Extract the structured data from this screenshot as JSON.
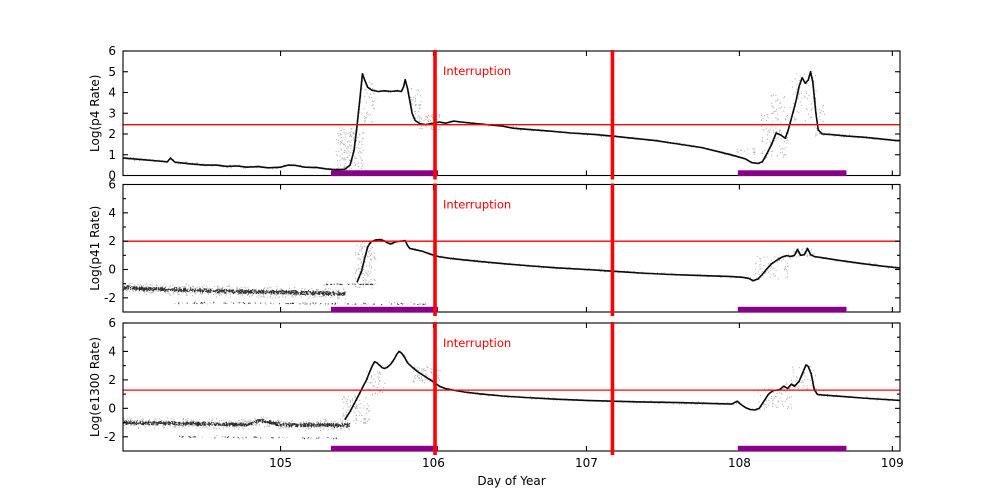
{
  "figure": {
    "background": "#ffffff"
  },
  "chart_data": {
    "type": "scatter",
    "title": "",
    "xlabel": "Day of Year",
    "xlim": [
      103.97,
      109.05
    ],
    "xticks": [
      105,
      106,
      107,
      108,
      109
    ],
    "grid": false,
    "legend": "none",
    "colors": {
      "trace": "#000000",
      "threshold": "#ff0000",
      "interruption": "#ff0000",
      "bar": "#870087"
    },
    "interruption": {
      "label": "Interruption",
      "days": [
        106.01,
        107.17
      ]
    },
    "coverage_bars": [
      [
        105.33,
        106.03
      ],
      [
        107.99,
        108.7
      ]
    ],
    "panels": [
      {
        "ylabel": "Log(p4 Rate)",
        "ylim": [
          0,
          6
        ],
        "yticks_major": [
          0,
          1,
          2,
          3,
          4,
          5,
          6
        ],
        "yticks_minor": [],
        "threshold": 2.45,
        "trace": [
          [
            103.97,
            0.85
          ],
          [
            104.1,
            0.76
          ],
          [
            104.2,
            0.7
          ],
          [
            104.26,
            0.66
          ],
          [
            104.28,
            0.84
          ],
          [
            104.31,
            0.64
          ],
          [
            104.4,
            0.57
          ],
          [
            104.5,
            0.5
          ],
          [
            104.58,
            0.5
          ],
          [
            104.65,
            0.44
          ],
          [
            104.72,
            0.46
          ],
          [
            104.78,
            0.4
          ],
          [
            104.85,
            0.43
          ],
          [
            104.92,
            0.37
          ],
          [
            105.0,
            0.4
          ],
          [
            105.05,
            0.5
          ],
          [
            105.1,
            0.48
          ],
          [
            105.16,
            0.4
          ],
          [
            105.24,
            0.38
          ],
          [
            105.3,
            0.32
          ],
          [
            105.36,
            0.28
          ],
          [
            105.42,
            0.3
          ],
          [
            105.455,
            0.5
          ],
          [
            105.48,
            1.2
          ],
          [
            105.5,
            2.4
          ],
          [
            105.52,
            3.8
          ],
          [
            105.535,
            4.9
          ],
          [
            105.55,
            4.6
          ],
          [
            105.57,
            4.25
          ],
          [
            105.6,
            4.1
          ],
          [
            105.64,
            4.05
          ],
          [
            105.68,
            4.08
          ],
          [
            105.72,
            4.05
          ],
          [
            105.76,
            4.08
          ],
          [
            105.79,
            4.05
          ],
          [
            105.805,
            4.3
          ],
          [
            105.815,
            4.62
          ],
          [
            105.83,
            4.2
          ],
          [
            105.845,
            3.6
          ],
          [
            105.86,
            3.0
          ],
          [
            105.88,
            2.65
          ],
          [
            105.91,
            2.5
          ],
          [
            105.95,
            2.45
          ],
          [
            106.0,
            2.52
          ],
          [
            106.04,
            2.58
          ],
          [
            106.08,
            2.52
          ],
          [
            106.13,
            2.62
          ],
          [
            106.18,
            2.58
          ],
          [
            106.25,
            2.52
          ],
          [
            106.35,
            2.45
          ],
          [
            106.45,
            2.38
          ],
          [
            106.52,
            2.28
          ],
          [
            106.62,
            2.22
          ],
          [
            106.75,
            2.15
          ],
          [
            106.9,
            2.05
          ],
          [
            107.05,
            1.98
          ],
          [
            107.17,
            1.9
          ],
          [
            107.3,
            1.8
          ],
          [
            107.45,
            1.68
          ],
          [
            107.6,
            1.52
          ],
          [
            107.75,
            1.35
          ],
          [
            107.88,
            1.12
          ],
          [
            107.97,
            0.95
          ],
          [
            108.0,
            0.88
          ],
          [
            108.04,
            0.8
          ],
          [
            108.08,
            0.62
          ],
          [
            108.12,
            0.58
          ],
          [
            108.15,
            0.66
          ],
          [
            108.18,
            1.05
          ],
          [
            108.21,
            1.5
          ],
          [
            108.24,
            2.05
          ],
          [
            108.27,
            1.95
          ],
          [
            108.3,
            1.8
          ],
          [
            108.32,
            2.2
          ],
          [
            108.345,
            2.9
          ],
          [
            108.37,
            3.6
          ],
          [
            108.39,
            4.3
          ],
          [
            108.41,
            4.72
          ],
          [
            108.43,
            4.45
          ],
          [
            108.45,
            4.6
          ],
          [
            108.465,
            5.0
          ],
          [
            108.48,
            4.5
          ],
          [
            108.5,
            3.0
          ],
          [
            108.515,
            2.2
          ],
          [
            108.54,
            2.0
          ],
          [
            108.6,
            1.97
          ],
          [
            108.7,
            1.9
          ],
          [
            108.8,
            1.85
          ],
          [
            108.9,
            1.78
          ],
          [
            109.0,
            1.7
          ],
          [
            109.05,
            1.67
          ]
        ],
        "noise_bands": [],
        "scatter": [
          {
            "x0": 105.36,
            "x1": 105.54,
            "y0": 0.15,
            "y1": 2.3,
            "n": 170
          },
          {
            "x0": 105.54,
            "x1": 105.62,
            "y0": 2.5,
            "y1": 4.6,
            "n": 40
          },
          {
            "x0": 105.84,
            "x1": 105.92,
            "y0": 2.7,
            "y1": 4.2,
            "n": 40
          },
          {
            "x0": 105.9,
            "x1": 106.04,
            "y0": 2.2,
            "y1": 2.95,
            "n": 60
          },
          {
            "x0": 107.96,
            "x1": 108.1,
            "y0": 1.0,
            "y1": 1.45,
            "n": 15
          },
          {
            "x0": 108.14,
            "x1": 108.32,
            "y0": 0.8,
            "y1": 3.0,
            "n": 95
          },
          {
            "x0": 108.2,
            "x1": 108.3,
            "y0": 2.8,
            "y1": 3.9,
            "n": 25
          },
          {
            "x0": 108.32,
            "x1": 108.5,
            "y0": 2.6,
            "y1": 4.9,
            "n": 60
          },
          {
            "x0": 108.48,
            "x1": 108.56,
            "y0": 1.9,
            "y1": 3.4,
            "n": 25
          }
        ]
      },
      {
        "ylabel": "Log(p41 Rate)",
        "ylim": [
          -3,
          6
        ],
        "yticks_major": [
          -2,
          0,
          2,
          4,
          6
        ],
        "yticks_minor": [
          -1,
          1,
          3,
          5
        ],
        "threshold": 2.0,
        "trace": [
          [
            105.5,
            -0.9
          ],
          [
            105.53,
            -0.1
          ],
          [
            105.55,
            0.8
          ],
          [
            105.57,
            1.6
          ],
          [
            105.59,
            1.95
          ],
          [
            105.62,
            2.08
          ],
          [
            105.65,
            2.12
          ],
          [
            105.68,
            2.02
          ],
          [
            105.7,
            1.88
          ],
          [
            105.72,
            1.8
          ],
          [
            105.75,
            1.95
          ],
          [
            105.78,
            2.0
          ],
          [
            105.8,
            2.02
          ],
          [
            105.815,
            2.05
          ],
          [
            105.83,
            1.7
          ],
          [
            105.845,
            1.48
          ],
          [
            105.88,
            1.4
          ],
          [
            105.93,
            1.28
          ],
          [
            105.98,
            1.08
          ],
          [
            106.03,
            0.92
          ],
          [
            106.1,
            0.8
          ],
          [
            106.2,
            0.68
          ],
          [
            106.3,
            0.57
          ],
          [
            106.45,
            0.42
          ],
          [
            106.6,
            0.28
          ],
          [
            106.8,
            0.12
          ],
          [
            107.0,
            0.0
          ],
          [
            107.17,
            -0.12
          ],
          [
            107.35,
            -0.25
          ],
          [
            107.55,
            -0.35
          ],
          [
            107.75,
            -0.43
          ],
          [
            107.95,
            -0.5
          ],
          [
            108.02,
            -0.55
          ],
          [
            108.06,
            -0.62
          ],
          [
            108.09,
            -0.78
          ],
          [
            108.12,
            -0.68
          ],
          [
            108.15,
            -0.35
          ],
          [
            108.18,
            0.05
          ],
          [
            108.21,
            0.4
          ],
          [
            108.25,
            0.7
          ],
          [
            108.28,
            0.88
          ],
          [
            108.31,
            0.98
          ],
          [
            108.335,
            0.92
          ],
          [
            108.36,
            1.0
          ],
          [
            108.38,
            1.42
          ],
          [
            108.4,
            1.0
          ],
          [
            108.425,
            1.05
          ],
          [
            108.445,
            1.5
          ],
          [
            108.465,
            1.05
          ],
          [
            108.49,
            0.92
          ],
          [
            108.55,
            0.82
          ],
          [
            108.65,
            0.65
          ],
          [
            108.8,
            0.42
          ],
          [
            108.95,
            0.22
          ],
          [
            109.05,
            0.1
          ]
        ],
        "noise_bands": [
          {
            "centers": [
              [
                103.97,
                -1.3
              ],
              [
                104.5,
                -1.5
              ],
              [
                105.0,
                -1.6
              ],
              [
                105.42,
                -1.72
              ]
            ],
            "spread": 0.35,
            "n": 1500
          },
          {
            "centers": [
              [
                104.3,
                -2.35
              ],
              [
                105.95,
                -2.45
              ]
            ],
            "spread": 0.12,
            "n": 110
          },
          {
            "centers": [
              [
                105.28,
                -1.05
              ],
              [
                105.6,
                -1.05
              ]
            ],
            "spread": 0.05,
            "n": 45
          }
        ],
        "scatter": [
          {
            "x0": 105.48,
            "x1": 105.62,
            "y0": -1.3,
            "y1": 1.9,
            "n": 110
          },
          {
            "x0": 108.1,
            "x1": 108.32,
            "y0": -0.7,
            "y1": 1.0,
            "n": 60
          },
          {
            "x0": 108.32,
            "x1": 108.5,
            "y0": 0.8,
            "y1": 1.5,
            "n": 30
          }
        ]
      },
      {
        "ylabel": "Log(e1300 Rate)",
        "ylim": [
          -3,
          6
        ],
        "yticks_major": [
          -2,
          0,
          2,
          4,
          6
        ],
        "yticks_minor": [
          -1,
          1,
          3,
          5
        ],
        "threshold": 1.28,
        "trace": [
          [
            105.42,
            -0.8
          ],
          [
            105.45,
            -0.3
          ],
          [
            105.48,
            0.3
          ],
          [
            105.51,
            0.9
          ],
          [
            105.54,
            1.55
          ],
          [
            105.56,
            1.95
          ],
          [
            105.58,
            2.5
          ],
          [
            105.6,
            3.0
          ],
          [
            105.615,
            3.28
          ],
          [
            105.63,
            3.2
          ],
          [
            105.65,
            3.0
          ],
          [
            105.665,
            2.85
          ],
          [
            105.68,
            2.8
          ],
          [
            105.7,
            2.9
          ],
          [
            105.72,
            3.1
          ],
          [
            105.745,
            3.5
          ],
          [
            105.76,
            3.8
          ],
          [
            105.775,
            4.0
          ],
          [
            105.79,
            3.9
          ],
          [
            105.81,
            3.6
          ],
          [
            105.83,
            3.2
          ],
          [
            105.86,
            2.9
          ],
          [
            105.9,
            2.55
          ],
          [
            105.95,
            2.2
          ],
          [
            106.0,
            1.85
          ],
          [
            106.04,
            1.55
          ],
          [
            106.08,
            1.38
          ],
          [
            106.13,
            1.28
          ],
          [
            106.2,
            1.15
          ],
          [
            106.3,
            1.02
          ],
          [
            106.45,
            0.87
          ],
          [
            106.6,
            0.76
          ],
          [
            106.8,
            0.64
          ],
          [
            107.0,
            0.56
          ],
          [
            107.17,
            0.5
          ],
          [
            107.4,
            0.44
          ],
          [
            107.6,
            0.4
          ],
          [
            107.8,
            0.35
          ],
          [
            107.95,
            0.3
          ],
          [
            107.985,
            0.5
          ],
          [
            108.01,
            0.27
          ],
          [
            108.04,
            0.05
          ],
          [
            108.07,
            -0.08
          ],
          [
            108.1,
            -0.12
          ],
          [
            108.13,
            0.0
          ],
          [
            108.16,
            0.5
          ],
          [
            108.19,
            1.0
          ],
          [
            108.22,
            1.25
          ],
          [
            108.26,
            1.3
          ],
          [
            108.29,
            1.55
          ],
          [
            108.315,
            1.4
          ],
          [
            108.34,
            1.7
          ],
          [
            108.36,
            1.55
          ],
          [
            108.39,
            1.9
          ],
          [
            108.41,
            2.4
          ],
          [
            108.435,
            3.05
          ],
          [
            108.45,
            2.95
          ],
          [
            108.47,
            2.4
          ],
          [
            108.49,
            1.3
          ],
          [
            108.51,
            0.98
          ],
          [
            108.55,
            0.93
          ],
          [
            108.65,
            0.85
          ],
          [
            108.8,
            0.73
          ],
          [
            108.95,
            0.62
          ],
          [
            109.05,
            0.56
          ]
        ],
        "noise_bands": [
          {
            "centers": [
              [
                103.97,
                -1.0
              ],
              [
                104.78,
                -1.15
              ],
              [
                104.86,
                -0.85
              ],
              [
                105.0,
                -1.15
              ],
              [
                105.45,
                -1.2
              ]
            ],
            "spread": 0.32,
            "n": 1500
          },
          {
            "centers": [
              [
                104.3,
                -2.0
              ],
              [
                105.4,
                -2.1
              ]
            ],
            "spread": 0.1,
            "n": 55
          }
        ],
        "scatter": [
          {
            "x0": 105.4,
            "x1": 105.58,
            "y0": -1.1,
            "y1": 0.9,
            "n": 90
          },
          {
            "x0": 105.56,
            "x1": 105.68,
            "y0": 0.9,
            "y1": 2.6,
            "n": 40
          },
          {
            "x0": 105.86,
            "x1": 106.04,
            "y0": 1.8,
            "y1": 3.0,
            "n": 70
          },
          {
            "x0": 108.12,
            "x1": 108.34,
            "y0": -0.1,
            "y1": 1.4,
            "n": 60
          },
          {
            "x0": 108.3,
            "x1": 108.5,
            "y0": 1.2,
            "y1": 3.0,
            "n": 45
          }
        ]
      }
    ]
  }
}
